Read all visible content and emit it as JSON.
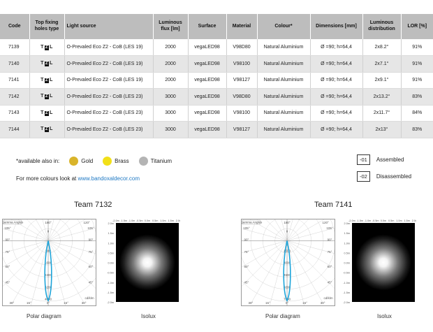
{
  "table": {
    "headers": {
      "code": "Code",
      "top_fixing": "Top fixing holes type",
      "light_source": "Light source",
      "luminous_flux": "Luminous flux [lm]",
      "surface": "Surface",
      "material": "Material",
      "colour": "Colour*",
      "dimensions": "Dimensions [mm]",
      "luminous_distribution": "Luminous distribution",
      "lor": "LOR [%]"
    },
    "rows": [
      {
        "code": "7139",
        "fix_t": "T",
        "fix_z": "Z",
        "fix_l": "L",
        "light_source": "O-Prevaled Eco Z2 - CoB (LES 19)",
        "flux": "2000",
        "surface": "vegaLED98",
        "material": "V98D80",
        "colour": "Natural Aluminium",
        "dimensions": "Ø =90; h=64,4",
        "distribution": "2x8.2°",
        "lor": "91%"
      },
      {
        "code": "7140",
        "fix_t": "T",
        "fix_z": "Z",
        "fix_l": "L",
        "light_source": "O-Prevaled Eco Z2 - CoB (LES 19)",
        "flux": "2000",
        "surface": "vegaLED98",
        "material": "V98100",
        "colour": "Natural Aluminium",
        "dimensions": "Ø =90; h=64,4",
        "distribution": "2x7.1°",
        "lor": "91%"
      },
      {
        "code": "7141",
        "fix_t": "T",
        "fix_z": "Z",
        "fix_l": "L",
        "light_source": "O-Prevaled Eco Z2 - CoB (LES 19)",
        "flux": "2000",
        "surface": "vegaLED98",
        "material": "V98127",
        "colour": "Natural Aluminium",
        "dimensions": "Ø =90; h=64,4",
        "distribution": "2x9.1°",
        "lor": "91%"
      },
      {
        "code": "7142",
        "fix_t": "T",
        "fix_z": "Z",
        "fix_l": "L",
        "light_source": "O-Prevaled Eco Z2 - CoB (LES 23)",
        "flux": "3000",
        "surface": "vegaLED98",
        "material": "V98D80",
        "colour": "Natural Aluminium",
        "dimensions": "Ø =90; h=64,4",
        "distribution": "2x13.2°",
        "lor": "83%"
      },
      {
        "code": "7143",
        "fix_t": "T",
        "fix_z": "Z",
        "fix_l": "L",
        "light_source": "O-Prevaled Eco Z2 - CoB (LES 23)",
        "flux": "3000",
        "surface": "vegaLED98",
        "material": "V98100",
        "colour": "Natural Aluminium",
        "dimensions": "Ø =90; h=64,4",
        "distribution": "2x11.7°",
        "lor": "84%"
      },
      {
        "code": "7144",
        "fix_t": "T",
        "fix_z": "Z",
        "fix_l": "L",
        "light_source": "O-Prevaled Eco Z2 - CoB (LES 23)",
        "flux": "3000",
        "surface": "vegaLED98",
        "material": "V98127",
        "colour": "Natural Aluminium",
        "dimensions": "Ø =90; h=64,4",
        "distribution": "2x13°",
        "lor": "83%"
      }
    ]
  },
  "availability": {
    "label": "*available also in:",
    "options": [
      {
        "name": "Gold",
        "color": "#d9b42a"
      },
      {
        "name": "Brass",
        "color": "#f2e019"
      },
      {
        "name": "Titanium",
        "color": "#b4b4b4"
      }
    ]
  },
  "more_colours": {
    "text": "For more colours look at",
    "link": "www.bandoxaldecor.com"
  },
  "legend": [
    {
      "code": "-01",
      "label": "Assembled"
    },
    {
      "code": "-02",
      "label": "Disassembled"
    }
  ],
  "diagrams": [
    {
      "title": "Team 7132",
      "polar": {
        "caption": "Polar diagram",
        "gamma_label": "Gamma Angles",
        "unit": "cd/klm",
        "angles_top": [
          "180°",
          "120°"
        ],
        "angles_left": [
          "105°",
          "90°",
          "75°",
          "60°",
          "45°"
        ],
        "angles_right": [
          "105°",
          "90°",
          "75°",
          "60°",
          "45°"
        ],
        "angles_bottom": [
          "30°",
          "15°",
          "0°",
          "15°",
          "30°"
        ],
        "rings": [
          "800",
          "1600",
          "2400",
          "3200",
          "4000"
        ],
        "ring_zero": "0",
        "accent": "#1aa3d9"
      },
      "isolux": {
        "caption": "Isolux",
        "x_ticks": [
          "-2.0m",
          "-1.5m",
          "-1.0m",
          "-0.5m",
          "0.0m",
          "0.5m",
          "1.0m",
          "1.5m",
          "2.0m"
        ],
        "y_ticks": [
          "2.0m",
          "1.5m",
          "1.0m",
          "0.5m",
          "0.0m",
          "-0.5m",
          "-1.0m",
          "-1.5m",
          "-2.0m"
        ]
      }
    },
    {
      "title": "Team 7141",
      "polar": {
        "caption": "Polar diagram",
        "gamma_label": "Gamma Angles",
        "unit": "cd/klm",
        "angles_top": [
          "180°",
          "120°"
        ],
        "angles_left": [
          "105°",
          "90°",
          "75°",
          "60°",
          "45°"
        ],
        "angles_right": [
          "105°",
          "90°",
          "75°",
          "60°",
          "45°"
        ],
        "angles_bottom": [
          "30°",
          "15°",
          "0°",
          "15°",
          "30°"
        ],
        "rings": [
          "1500",
          "3000",
          "4500",
          "6000",
          "7500"
        ],
        "ring_zero": "0",
        "accent": "#1aa3d9"
      },
      "isolux": {
        "caption": "Isolux",
        "x_ticks": [
          "-2.0m",
          "-1.5m",
          "-1.0m",
          "-0.5m",
          "0.0m",
          "0.5m",
          "1.0m",
          "1.5m",
          "2.0m"
        ],
        "y_ticks": [
          "2.0m",
          "1.5m",
          "1.0m",
          "0.5m",
          "0.0m",
          "-0.5m",
          "-1.0m",
          "-1.5m",
          "-2.0m"
        ]
      }
    }
  ]
}
